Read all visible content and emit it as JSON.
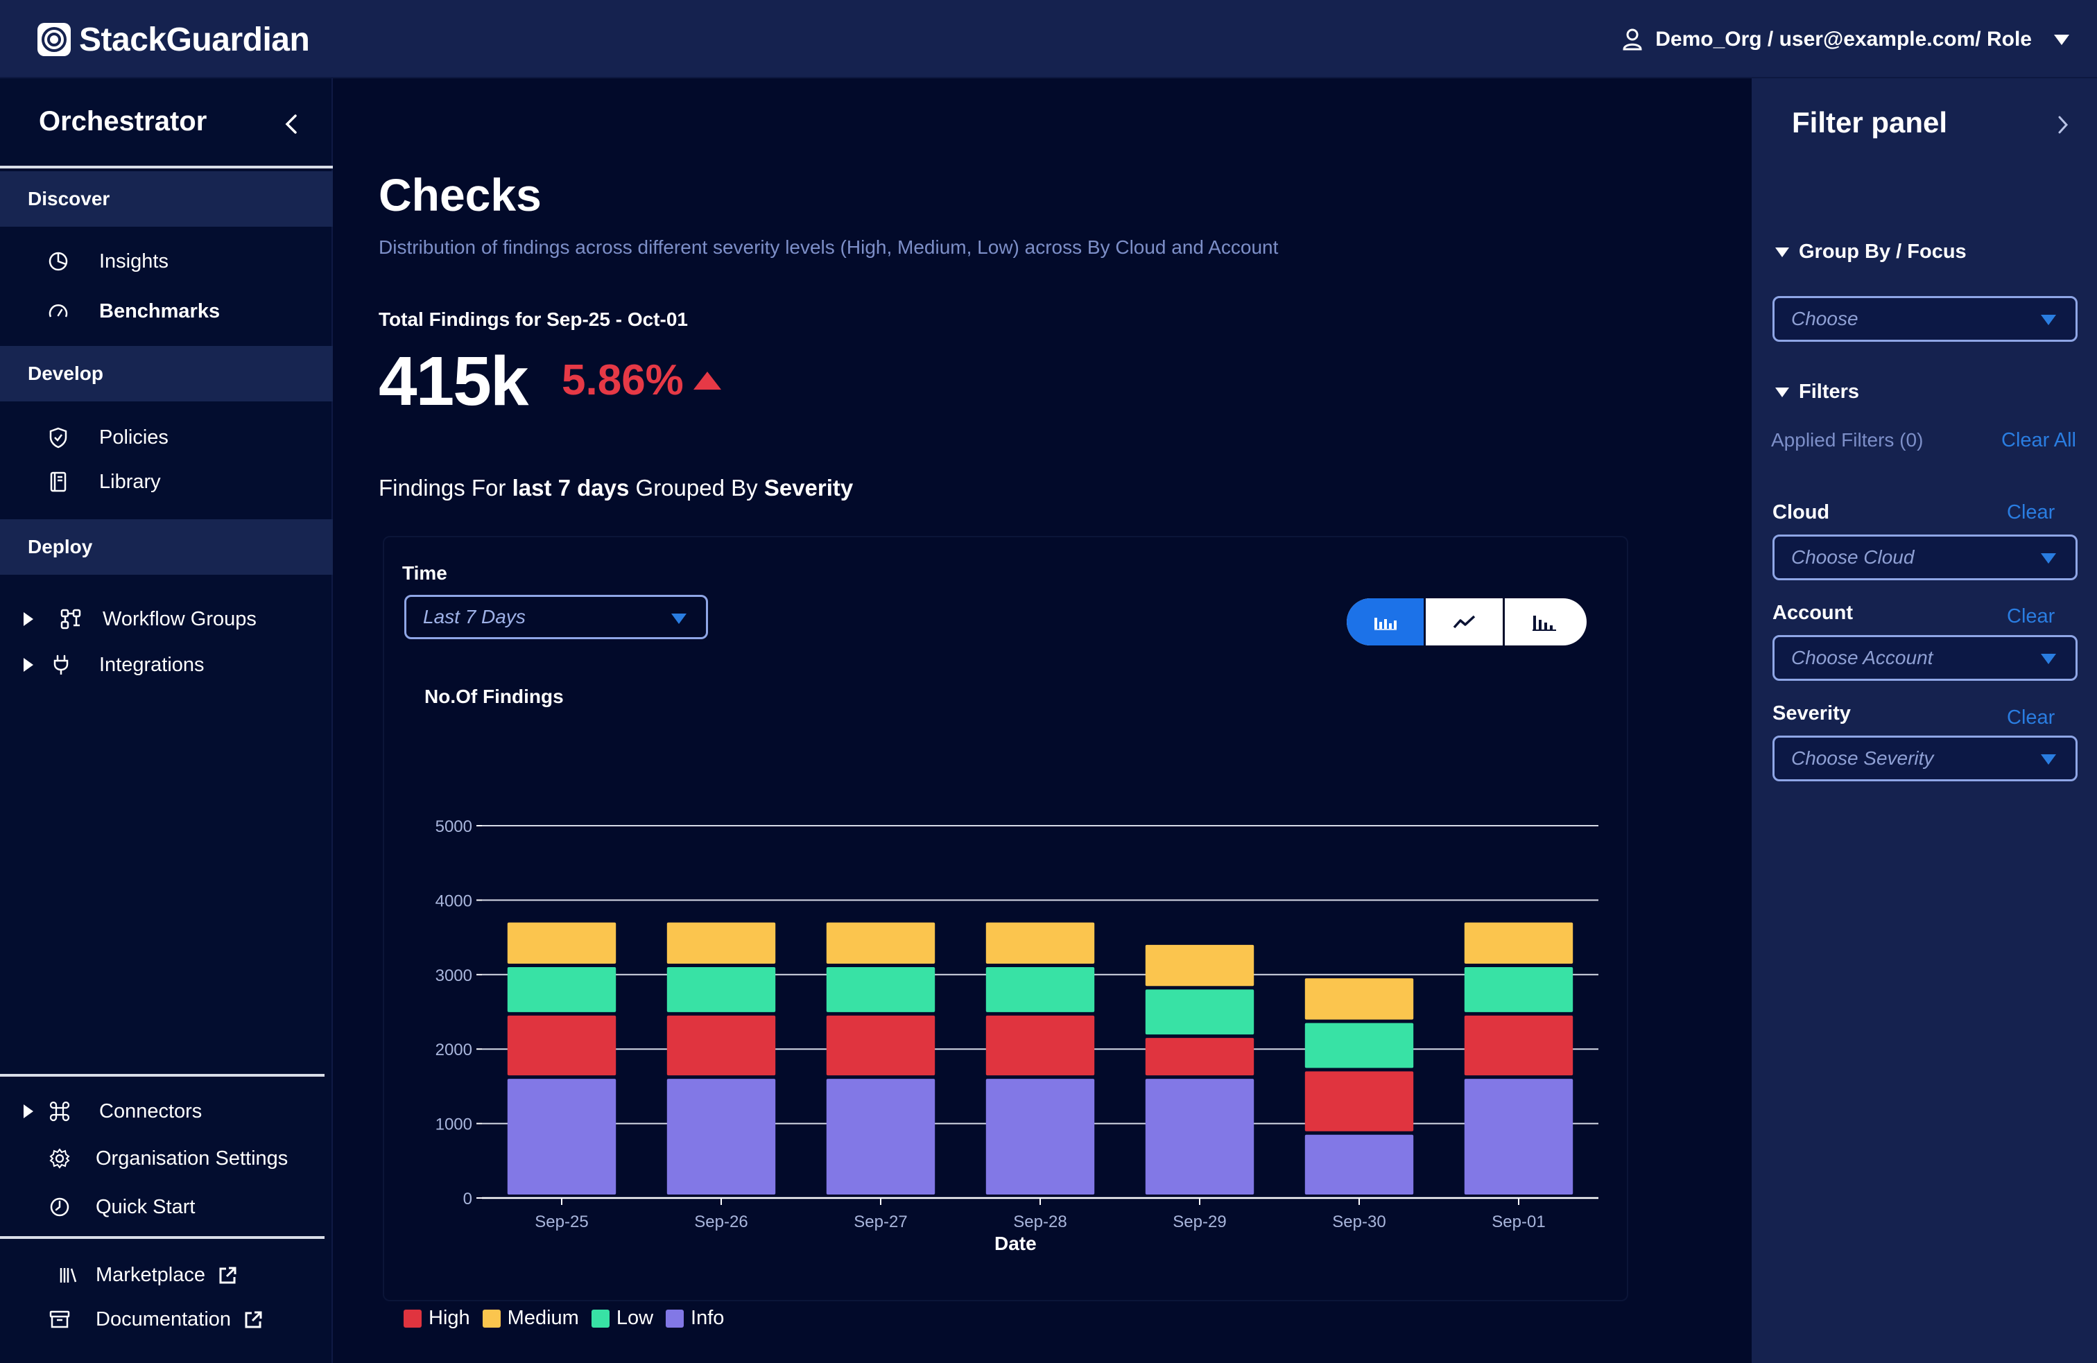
{
  "app": {
    "logo_text": "StackGuardian",
    "user_label": "Demo_Org / user@example.com/ Role"
  },
  "sidebar": {
    "title": "Orchestrator",
    "sections": [
      {
        "label": "Discover",
        "items": [
          {
            "label": "Insights",
            "icon": "pie-chart-icon",
            "bold": false
          },
          {
            "label": "Benchmarks",
            "icon": "gauge-icon",
            "bold": true
          }
        ]
      },
      {
        "label": "Develop",
        "items": [
          {
            "label": "Policies",
            "icon": "shield-check-icon"
          },
          {
            "label": "Library",
            "icon": "book-icon"
          }
        ]
      },
      {
        "label": "Deploy",
        "items": [
          {
            "label": "Workflow Groups",
            "icon": "workflow-icon",
            "expandable": true
          },
          {
            "label": "Integrations",
            "icon": "plug-icon",
            "expandable": true
          }
        ]
      }
    ],
    "bottom_items": [
      {
        "label": "Connectors",
        "icon": "command-icon",
        "expandable": true
      },
      {
        "label": "Organisation Settings",
        "icon": "gear-icon"
      },
      {
        "label": "Quick Start",
        "icon": "clock-icon"
      }
    ],
    "external_links": [
      {
        "label": "Marketplace",
        "icon": "library-icon"
      },
      {
        "label": "Documentation",
        "icon": "archive-icon"
      }
    ]
  },
  "main": {
    "title": "Checks",
    "subtitle": "Distribution of findings across different severity levels (High, Medium, Low) across By Cloud and Account",
    "total_label": "Total Findings for Sep-25 - Oct-01",
    "total_value": "415k",
    "total_change": "5.86%",
    "grouped_heading": {
      "prefix": "Findings For ",
      "range": "last 7 days",
      "middle": " Grouped By ",
      "group": "Severity"
    },
    "time_label": "Time",
    "time_value": "Last 7 Days",
    "chart_views": [
      "stacked-bar-icon",
      "line-chart-icon",
      "bar-chart-icon"
    ],
    "active_view": "stacked-bar-icon"
  },
  "chart_data": {
    "type": "bar",
    "stacked": true,
    "ylabel": "No.Of Findings",
    "xlabel": "Date",
    "ylim": [
      0,
      5000
    ],
    "yticks": [
      0,
      1000,
      2000,
      3000,
      4000,
      5000
    ],
    "grid": true,
    "legend_position": "bottom-left",
    "categories": [
      "Sep-25",
      "Sep-26",
      "Sep-27",
      "Sep-28",
      "Sep-29",
      "Sep-30",
      "Sep-01"
    ],
    "series": [
      {
        "name": "Info",
        "color": "#8278e6",
        "values": [
          1600,
          1600,
          1600,
          1600,
          1600,
          850,
          1600
        ]
      },
      {
        "name": "High",
        "color": "#e0343f",
        "values": [
          850,
          850,
          850,
          850,
          550,
          850,
          850
        ]
      },
      {
        "name": "Low",
        "color": "#38e2a5",
        "values": [
          650,
          650,
          650,
          650,
          650,
          650,
          650
        ]
      },
      {
        "name": "Medium",
        "color": "#fbc54e",
        "values": [
          600,
          600,
          600,
          600,
          600,
          600,
          600
        ]
      }
    ],
    "legend_order": [
      "High",
      "Medium",
      "Low",
      "Info"
    ]
  },
  "filter_panel": {
    "title": "Filter panel",
    "group_by_label": "Group By / Focus",
    "group_by_placeholder": "Choose",
    "filters_label": "Filters",
    "applied_filters": "Applied Filters (0)",
    "clear_all": "Clear All",
    "fields": [
      {
        "label": "Cloud",
        "clear": "Clear",
        "placeholder": "Choose Cloud"
      },
      {
        "label": "Account",
        "clear": "Clear",
        "placeholder": "Choose Account"
      },
      {
        "label": "Severity",
        "clear": "Clear",
        "placeholder": "Choose Severity"
      }
    ]
  },
  "colors": {
    "background": "#020a2a",
    "topbar": "#15224f",
    "accent": "#1c72e8",
    "negative": "#e63946",
    "link": "#2a7de1"
  }
}
